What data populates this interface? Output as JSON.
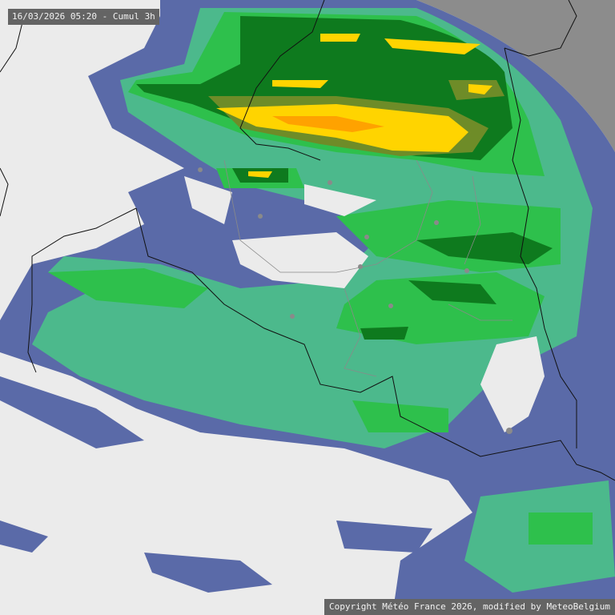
{
  "header": {
    "timestamp": "16/03/2026 05:20 - Cumul 3h"
  },
  "footer": {
    "copyright": "Copyright Météo France 2026, modified by MeteoBelgium"
  },
  "map": {
    "type": "precipitation radar accumulation",
    "colors": {
      "background": "#ebebeb",
      "outside_radar": "#8c8c8c",
      "very_light": "#5a6aa8",
      "light": "#4cb98c",
      "moderate": "#2ec04c",
      "heavy": "#0e7a1e",
      "very_heavy": "#6e8c28",
      "intense": "#ffd400",
      "extreme": "#ffa200",
      "borders": "#111111",
      "regions": "#8a8a8a"
    }
  }
}
